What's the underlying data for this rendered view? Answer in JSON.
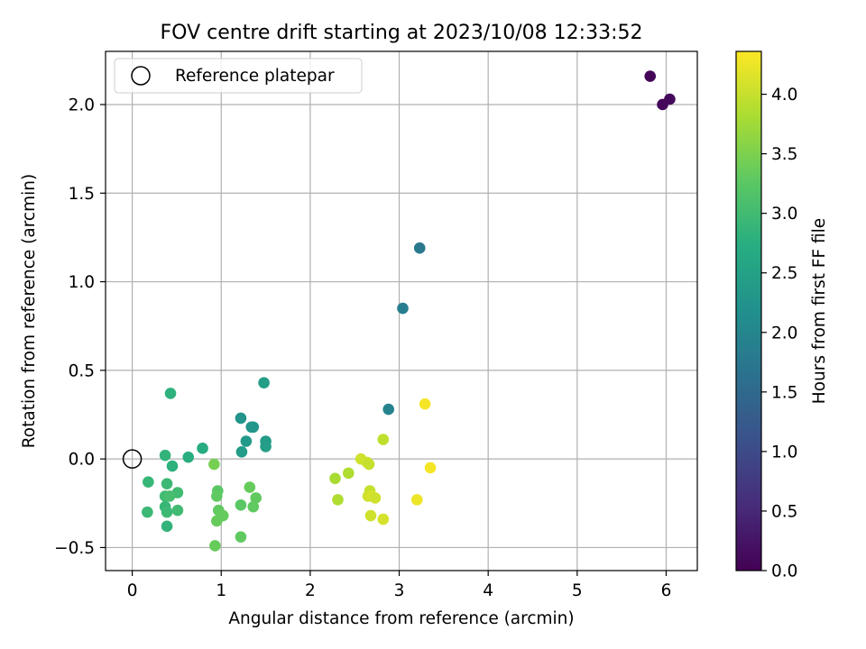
{
  "chart_data": {
    "type": "scatter",
    "title": "FOV centre drift starting at 2023/10/08 12:33:52",
    "xlabel": "Angular distance from reference (arcmin)",
    "ylabel": "Rotation from reference (arcmin)",
    "xlim": [
      -0.3,
      6.35
    ],
    "ylim": [
      -0.63,
      2.3
    ],
    "xticks": [
      0,
      1,
      2,
      3,
      4,
      5,
      6
    ],
    "xtick_labels": [
      "0",
      "1",
      "2",
      "3",
      "4",
      "5",
      "6"
    ],
    "yticks": [
      -0.5,
      0.0,
      0.5,
      1.0,
      1.5,
      2.0
    ],
    "ytick_labels": [
      "−0.5",
      "0.0",
      "0.5",
      "1.0",
      "1.5",
      "2.0"
    ],
    "grid": true,
    "legend": {
      "placement": "top-left",
      "entries": [
        "Reference platepar"
      ]
    },
    "reference_point": {
      "x": 0.0,
      "y": 0.0,
      "label": "Reference platepar"
    },
    "colorbar": {
      "label": "Hours from first FF file",
      "colormap": "viridis",
      "range": [
        0.0,
        4.36
      ],
      "ticks": [
        0.0,
        0.5,
        1.0,
        1.5,
        2.0,
        2.5,
        3.0,
        3.5,
        4.0
      ],
      "tick_labels": [
        "0.0",
        "0.5",
        "1.0",
        "1.5",
        "2.0",
        "2.5",
        "3.0",
        "3.5",
        "4.0"
      ]
    },
    "points": [
      {
        "x": 5.82,
        "y": 2.16,
        "h": 0.05
      },
      {
        "x": 5.96,
        "y": 2.0,
        "h": 0.08
      },
      {
        "x": 6.04,
        "y": 2.03,
        "h": 0.1
      },
      {
        "x": 3.23,
        "y": 1.19,
        "h": 1.75
      },
      {
        "x": 3.04,
        "y": 0.85,
        "h": 1.85
      },
      {
        "x": 2.88,
        "y": 0.28,
        "h": 1.95
      },
      {
        "x": 1.48,
        "y": 0.43,
        "h": 2.45
      },
      {
        "x": 0.43,
        "y": 0.37,
        "h": 2.8
      },
      {
        "x": 1.22,
        "y": 0.23,
        "h": 2.25
      },
      {
        "x": 1.34,
        "y": 0.18,
        "h": 2.25
      },
      {
        "x": 1.36,
        "y": 0.18,
        "h": 2.3
      },
      {
        "x": 1.28,
        "y": 0.1,
        "h": 2.35
      },
      {
        "x": 1.5,
        "y": 0.1,
        "h": 2.4
      },
      {
        "x": 1.5,
        "y": 0.07,
        "h": 2.45
      },
      {
        "x": 1.23,
        "y": 0.04,
        "h": 2.4
      },
      {
        "x": 0.79,
        "y": 0.06,
        "h": 2.7
      },
      {
        "x": 0.63,
        "y": 0.01,
        "h": 2.75
      },
      {
        "x": 0.37,
        "y": 0.02,
        "h": 2.85
      },
      {
        "x": 0.45,
        "y": -0.04,
        "h": 2.8
      },
      {
        "x": 0.92,
        "y": -0.03,
        "h": 3.45
      },
      {
        "x": 0.18,
        "y": -0.13,
        "h": 2.9
      },
      {
        "x": 0.39,
        "y": -0.14,
        "h": 2.95
      },
      {
        "x": 0.51,
        "y": -0.19,
        "h": 3.0
      },
      {
        "x": 0.37,
        "y": -0.21,
        "h": 3.0
      },
      {
        "x": 0.42,
        "y": -0.21,
        "h": 3.05
      },
      {
        "x": 0.96,
        "y": -0.18,
        "h": 3.25
      },
      {
        "x": 0.95,
        "y": -0.21,
        "h": 3.3
      },
      {
        "x": 1.32,
        "y": -0.16,
        "h": 3.35
      },
      {
        "x": 1.39,
        "y": -0.22,
        "h": 3.3
      },
      {
        "x": 1.22,
        "y": -0.26,
        "h": 3.25
      },
      {
        "x": 1.36,
        "y": -0.27,
        "h": 3.3
      },
      {
        "x": 0.37,
        "y": -0.27,
        "h": 2.9
      },
      {
        "x": 0.51,
        "y": -0.29,
        "h": 3.0
      },
      {
        "x": 0.39,
        "y": -0.3,
        "h": 2.95
      },
      {
        "x": 0.17,
        "y": -0.3,
        "h": 2.95
      },
      {
        "x": 0.97,
        "y": -0.29,
        "h": 3.3
      },
      {
        "x": 1.02,
        "y": -0.32,
        "h": 3.35
      },
      {
        "x": 0.95,
        "y": -0.35,
        "h": 3.35
      },
      {
        "x": 0.39,
        "y": -0.38,
        "h": 2.85
      },
      {
        "x": 1.22,
        "y": -0.44,
        "h": 3.3
      },
      {
        "x": 0.93,
        "y": -0.49,
        "h": 3.35
      },
      {
        "x": 3.29,
        "y": 0.31,
        "h": 4.3
      },
      {
        "x": 2.82,
        "y": 0.11,
        "h": 3.95
      },
      {
        "x": 2.57,
        "y": 0.0,
        "h": 4.05
      },
      {
        "x": 2.64,
        "y": -0.02,
        "h": 4.05
      },
      {
        "x": 2.66,
        "y": -0.03,
        "h": 4.0
      },
      {
        "x": 3.35,
        "y": -0.05,
        "h": 4.3
      },
      {
        "x": 2.43,
        "y": -0.08,
        "h": 3.85
      },
      {
        "x": 2.28,
        "y": -0.11,
        "h": 3.8
      },
      {
        "x": 2.67,
        "y": -0.18,
        "h": 4.0
      },
      {
        "x": 2.65,
        "y": -0.21,
        "h": 4.05
      },
      {
        "x": 2.69,
        "y": -0.21,
        "h": 4.1
      },
      {
        "x": 2.73,
        "y": -0.22,
        "h": 4.05
      },
      {
        "x": 2.31,
        "y": -0.23,
        "h": 3.85
      },
      {
        "x": 3.2,
        "y": -0.23,
        "h": 4.25
      },
      {
        "x": 2.68,
        "y": -0.32,
        "h": 4.05
      },
      {
        "x": 2.82,
        "y": -0.34,
        "h": 4.1
      }
    ]
  }
}
